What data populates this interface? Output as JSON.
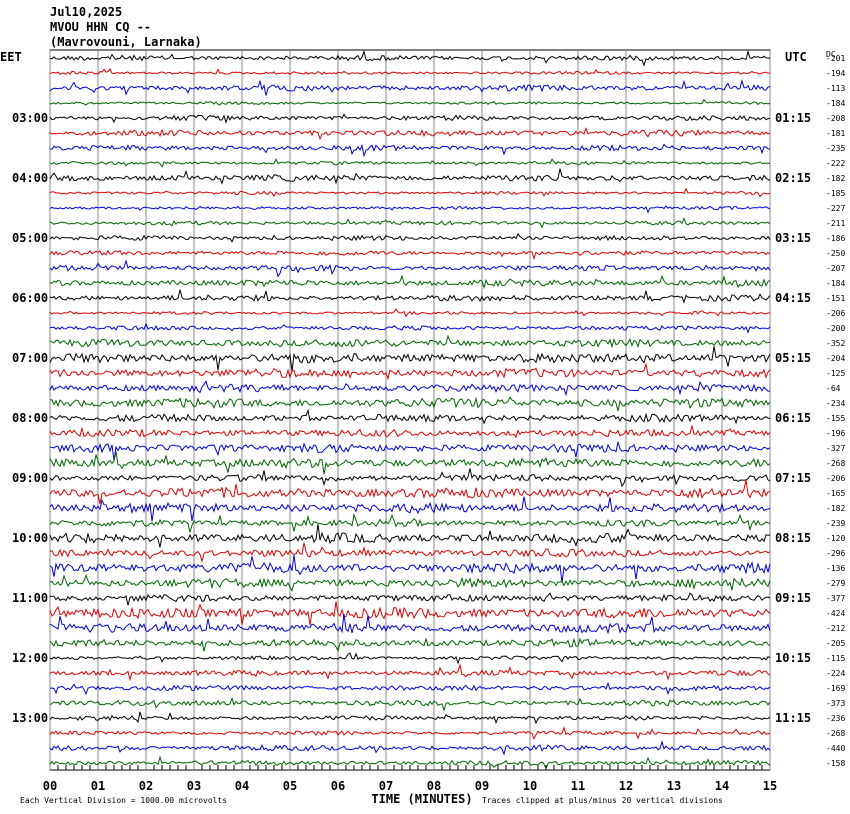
{
  "header": {
    "line1": "Jul10,2025",
    "line2": "MVOU HHN CQ --",
    "line3": "(Mavrovouni, Larnaka)"
  },
  "left_title": "EET",
  "right_title": "UTC",
  "dc_title": "DC",
  "left_labels": [
    "03:00",
    "04:00",
    "05:00",
    "06:00",
    "07:00",
    "08:00",
    "09:00",
    "10:00",
    "11:00",
    "12:00",
    "13:00"
  ],
  "right_labels": [
    "01:15",
    "02:15",
    "03:15",
    "04:15",
    "05:15",
    "06:15",
    "07:15",
    "08:15",
    "09:15",
    "10:15",
    "11:15"
  ],
  "dc_offsets": [
    -201,
    -194,
    -113,
    -184,
    -208,
    -181,
    -235,
    -222,
    -182,
    -185,
    -227,
    -211,
    -186,
    -250,
    -207,
    -184,
    -151,
    -206,
    -200,
    -352,
    -204,
    -125,
    -64,
    -234,
    -155,
    -196,
    -327,
    -268,
    -206,
    -165,
    -182,
    -239,
    -120,
    -296,
    -136,
    -279,
    -377,
    -424,
    -212,
    -205,
    -115,
    -224,
    -169,
    -373,
    -236,
    -268,
    -440,
    -158
  ],
  "trace_colors": [
    "#000000",
    "#e00000",
    "#0000e0",
    "#006400"
  ],
  "x_ticks": [
    "00",
    "01",
    "02",
    "03",
    "04",
    "05",
    "06",
    "07",
    "08",
    "09",
    "10",
    "11",
    "12",
    "13",
    "14",
    "15"
  ],
  "x_title": "TIME (MINUTES)",
  "footer_left": "Each Vertical Division = 1000.00 microvolts",
  "footer_right": "Traces clipped at plus/minus 20 vertical divisions"
}
